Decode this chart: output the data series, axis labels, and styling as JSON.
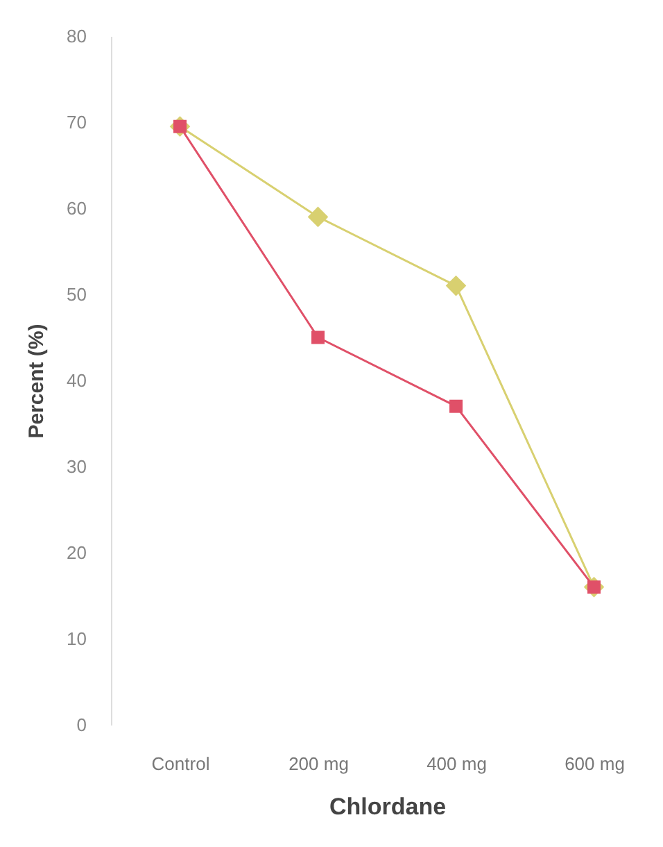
{
  "chart_data": {
    "type": "line",
    "xlabel": "Chlordane",
    "ylabel": "Percent (%)",
    "categories": [
      "Control",
      "200 mg",
      "400 mg",
      "600 mg"
    ],
    "series": [
      {
        "color": "#d8d070",
        "marker": "diamond",
        "values": [
          69.5,
          59,
          51,
          16
        ]
      },
      {
        "color": "#e05068",
        "marker": "square",
        "values": [
          69.5,
          45,
          37,
          16
        ]
      }
    ],
    "ylim": [
      0,
      80
    ],
    "yticks": [
      0,
      10,
      20,
      30,
      40,
      50,
      60,
      70,
      80
    ],
    "grid": false
  }
}
